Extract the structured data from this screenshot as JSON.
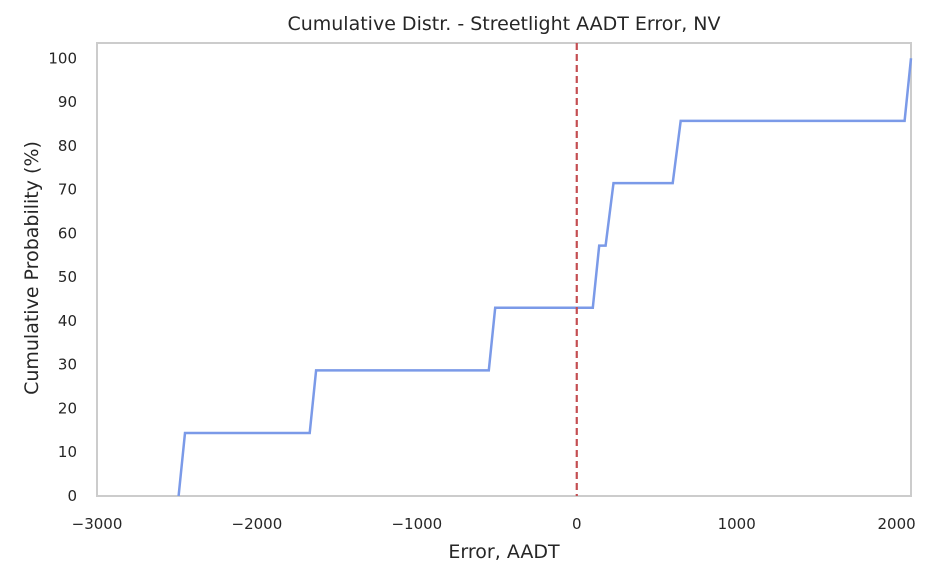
{
  "chart_data": {
    "type": "line",
    "title": "Cumulative Distr. - Streetlight AADT Error, NV",
    "xlabel": "Error, AADT",
    "ylabel": "Cumulative Probability (%)",
    "xlim": [
      -3000,
      2090
    ],
    "ylim": [
      0,
      103.5
    ],
    "xticks": [
      -3000,
      -2000,
      -1000,
      0,
      1000,
      2000
    ],
    "xtick_labels": [
      "−3000",
      "−2000",
      "−1000",
      "0",
      "1000",
      "2000"
    ],
    "yticks": [
      0,
      10,
      20,
      30,
      40,
      50,
      60,
      70,
      80,
      90,
      100
    ],
    "ytick_labels": [
      "0",
      "10",
      "20",
      "30",
      "40",
      "50",
      "60",
      "70",
      "80",
      "90",
      "100"
    ],
    "grid": false,
    "series": [
      {
        "color": "#7b9ae8",
        "x": [
          -2490,
          -2450,
          -1670,
          -1630,
          -550,
          -510,
          100,
          140,
          180,
          230,
          600,
          650,
          2050,
          2090
        ],
        "y": [
          0,
          14.4,
          14.4,
          28.7,
          28.7,
          43.0,
          43.0,
          57.2,
          57.2,
          71.5,
          71.5,
          85.7,
          85.7,
          100.0
        ]
      }
    ],
    "reference_line": {
      "orientation": "vertical",
      "x": 0,
      "style": "dashed",
      "color": "#c44e52"
    }
  }
}
